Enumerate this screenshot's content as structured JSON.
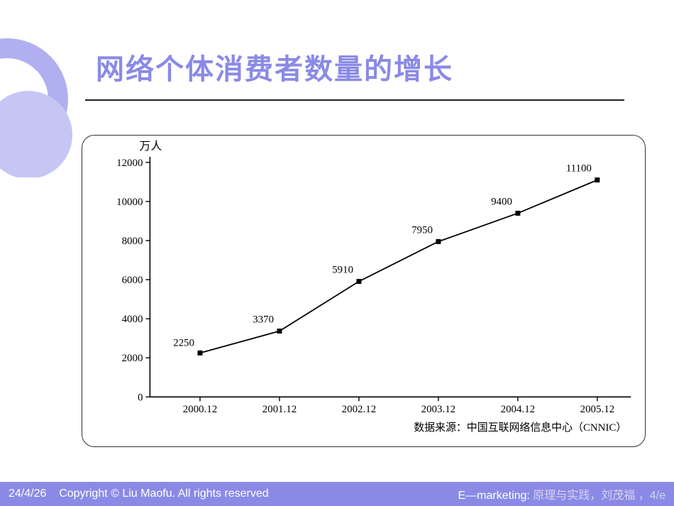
{
  "title": "网络个体消费者数量的增长",
  "decor": {
    "ring_color": "#b0b0f0",
    "disc_color": "#c6c6f5"
  },
  "chart": {
    "type": "line",
    "y_axis_title": "万人",
    "x_categories": [
      "2000.12",
      "2001.12",
      "2002.12",
      "2003.12",
      "2004.12",
      "2005.12"
    ],
    "series": {
      "values": [
        2250,
        3370,
        5910,
        7950,
        9400,
        11100
      ],
      "point_labels": [
        "2250",
        "3370",
        "5910",
        "7950",
        "9400",
        "11100"
      ],
      "marker_style": "square",
      "marker_size": 7,
      "marker_color": "#000000",
      "line_color": "#000000",
      "line_width": 1.8
    },
    "ylim": [
      0,
      12000
    ],
    "ytick_step": 2000,
    "ytick_labels": [
      "0",
      "2000",
      "4000",
      "6000",
      "8000",
      "10000",
      "12000"
    ],
    "axis_color": "#000000",
    "tick_length": 6,
    "font_family": "SimSun, serif",
    "axis_label_fontsize": 15,
    "ytitle_fontsize": 16,
    "point_label_fontsize": 15,
    "source_label": "数据来源：中国互联网络信息中心（CNNIC）",
    "source_fontsize": 15,
    "background_color": "#ffffff"
  },
  "footer": {
    "date": "24/4/26",
    "copyright_prefix": "Copyright © Liu Maofu.  All rights reserved",
    "right_prefix": "E—marketing: ",
    "right_dim": "原理与实践，刘茂福 ，4/e",
    "bg_color": "#8a8ae6",
    "text_color": "#ffffff",
    "dim_color": "#d8d3ef"
  }
}
